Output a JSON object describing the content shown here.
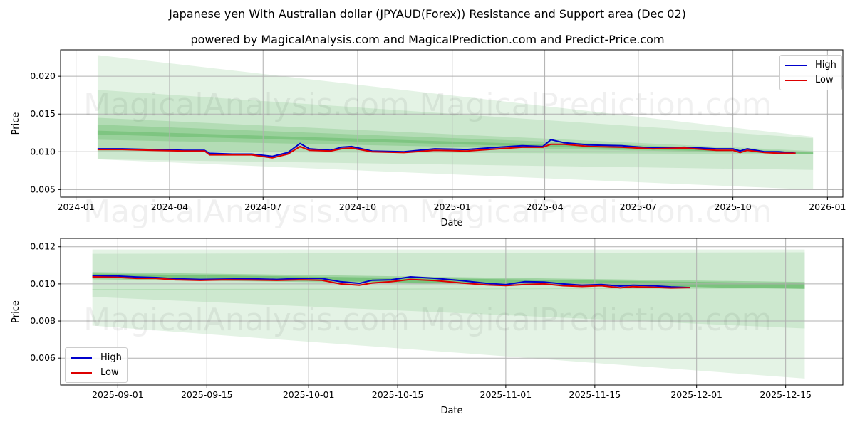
{
  "header": {
    "title": "Japanese yen With Australian dollar (JPYAUD(Forex)) Resistance and Support area (Dec 02)",
    "subtitle": "powered by MagicalAnalysis.com and MagicalPrediction.com and Predict-Price.com"
  },
  "watermarks": [
    "MagicalAnalysis.com",
    "MagicalPrediction.com"
  ],
  "colors": {
    "high": "#0000cc",
    "low": "#dd0000",
    "band": "#4caf50"
  },
  "legend": {
    "high": "High",
    "low": "Low"
  },
  "chart_data": [
    {
      "type": "line",
      "title": "Full history with resistance/support bands",
      "xlabel": "Date",
      "ylabel": "Price",
      "ylim": [
        0.004,
        0.0235
      ],
      "xlim": [
        "2023-12-17",
        "2026-01-16"
      ],
      "xticks": [
        "2024-01",
        "2024-04",
        "2024-07",
        "2024-10",
        "2025-01",
        "2025-04",
        "2025-07",
        "2025-10",
        "2026-01"
      ],
      "yticks": [
        "0.005",
        "0.010",
        "0.015",
        "0.020"
      ],
      "grid": true,
      "legend_position": "upper right",
      "x": [
        "2024-01-22",
        "2024-02-15",
        "2024-03-15",
        "2024-04-15",
        "2024-05-05",
        "2024-05-10",
        "2024-06-01",
        "2024-06-20",
        "2024-07-10",
        "2024-07-25",
        "2024-08-06",
        "2024-08-15",
        "2024-09-05",
        "2024-09-15",
        "2024-09-25",
        "2024-10-15",
        "2024-11-15",
        "2024-12-15",
        "2025-01-15",
        "2025-02-15",
        "2025-03-10",
        "2025-03-30",
        "2025-04-07",
        "2025-04-20",
        "2025-05-15",
        "2025-06-15",
        "2025-07-15",
        "2025-08-15",
        "2025-09-15",
        "2025-10-01",
        "2025-10-08",
        "2025-10-15",
        "2025-11-01",
        "2025-11-15",
        "2025-12-01"
      ],
      "series": [
        {
          "name": "High",
          "values": [
            0.0104,
            0.0104,
            0.0103,
            0.0102,
            0.0102,
            0.0098,
            0.0097,
            0.0097,
            0.0094,
            0.0099,
            0.0111,
            0.0104,
            0.0102,
            0.0106,
            0.0107,
            0.0101,
            0.01,
            0.0104,
            0.0103,
            0.0106,
            0.0108,
            0.0107,
            0.0116,
            0.0112,
            0.0109,
            0.0108,
            0.0105,
            0.0106,
            0.0104,
            0.0104,
            0.0101,
            0.0104,
            0.01,
            0.01,
            0.0098
          ]
        },
        {
          "name": "Low",
          "values": [
            0.0103,
            0.0103,
            0.0102,
            0.0101,
            0.0101,
            0.0096,
            0.0096,
            0.0096,
            0.0092,
            0.0097,
            0.0107,
            0.0102,
            0.0101,
            0.0104,
            0.0105,
            0.01,
            0.0099,
            0.0102,
            0.0101,
            0.0104,
            0.0106,
            0.0106,
            0.011,
            0.011,
            0.0107,
            0.0106,
            0.0104,
            0.0105,
            0.0102,
            0.0102,
            0.0099,
            0.0102,
            0.0099,
            0.0098,
            0.0098
          ]
        }
      ],
      "bands": [
        {
          "x0": "2024-01-22",
          "x1": "2025-12-18",
          "upper": [
            0.0228,
            0.012
          ],
          "lower": [
            0.009,
            0.005
          ],
          "opacity": 0.15
        },
        {
          "x0": "2024-01-22",
          "x1": "2025-12-18",
          "upper": [
            0.0182,
            0.0118
          ],
          "lower": [
            0.009,
            0.0076
          ],
          "opacity": 0.15
        },
        {
          "x0": "2024-01-22",
          "x1": "2025-12-18",
          "upper": [
            0.0145,
            0.0101
          ],
          "lower": [
            0.01,
            0.0097
          ],
          "opacity": 0.2
        },
        {
          "x0": "2024-01-22",
          "x1": "2025-12-18",
          "upper": [
            0.0136,
            0.01
          ],
          "lower": [
            0.0116,
            0.0097
          ],
          "opacity": 0.25
        },
        {
          "x0": "2024-01-22",
          "x1": "2025-12-18",
          "upper": [
            0.0128,
            0.0099
          ],
          "lower": [
            0.0123,
            0.0097
          ],
          "opacity": 0.35
        }
      ]
    },
    {
      "type": "line",
      "title": "Recent detail with resistance/support bands",
      "xlabel": "Date",
      "ylabel": "Price",
      "ylim": [
        0.00455,
        0.01245
      ],
      "xlim": [
        "2025-08-23",
        "2025-12-24"
      ],
      "xticks": [
        "2025-09-01",
        "2025-09-15",
        "2025-10-01",
        "2025-10-15",
        "2025-11-01",
        "2025-11-15",
        "2025-12-01",
        "2025-12-15"
      ],
      "yticks": [
        "0.006",
        "0.008",
        "0.010",
        "0.012"
      ],
      "grid": true,
      "legend_position": "lower left",
      "x": [
        "2025-08-28",
        "2025-09-01",
        "2025-09-04",
        "2025-09-07",
        "2025-09-10",
        "2025-09-14",
        "2025-09-18",
        "2025-09-22",
        "2025-09-26",
        "2025-09-30",
        "2025-10-03",
        "2025-10-06",
        "2025-10-09",
        "2025-10-11",
        "2025-10-14",
        "2025-10-17",
        "2025-10-21",
        "2025-10-25",
        "2025-10-29",
        "2025-11-01",
        "2025-11-04",
        "2025-11-07",
        "2025-11-10",
        "2025-11-13",
        "2025-11-16",
        "2025-11-19",
        "2025-11-21",
        "2025-11-24",
        "2025-11-27",
        "2025-11-30"
      ],
      "series": [
        {
          "name": "High",
          "values": [
            0.01045,
            0.01042,
            0.01037,
            0.01034,
            0.01028,
            0.01024,
            0.01026,
            0.01027,
            0.01024,
            0.0103,
            0.0103,
            0.01012,
            0.01003,
            0.0102,
            0.01022,
            0.01038,
            0.0103,
            0.01018,
            0.01003,
            0.00996,
            0.01012,
            0.0101,
            0.01,
            0.00993,
            0.00997,
            0.00988,
            0.00993,
            0.0099,
            0.00984,
            0.0098
          ]
        },
        {
          "name": "Low",
          "values": [
            0.01038,
            0.01035,
            0.0103,
            0.0103,
            0.01022,
            0.01019,
            0.01022,
            0.01021,
            0.01019,
            0.01022,
            0.0102,
            0.01,
            0.00993,
            0.01005,
            0.01012,
            0.01024,
            0.01018,
            0.01005,
            0.00995,
            0.00991,
            0.00997,
            0.01,
            0.0099,
            0.00986,
            0.0099,
            0.00979,
            0.00985,
            0.00982,
            0.00978,
            0.0098
          ]
        }
      ],
      "bands": [
        {
          "x0": "2025-08-28",
          "x1": "2025-12-18",
          "upper": [
            0.01185,
            0.01185
          ],
          "lower": [
            0.00775,
            0.0049
          ],
          "opacity": 0.15
        },
        {
          "x0": "2025-08-28",
          "x1": "2025-12-18",
          "upper": [
            0.01162,
            0.0117
          ],
          "lower": [
            0.0093,
            0.0076
          ],
          "opacity": 0.15
        },
        {
          "x0": "2025-08-28",
          "x1": "2025-12-18",
          "upper": [
            0.01064,
            0.0101
          ],
          "lower": [
            0.01025,
            0.00975
          ],
          "opacity": 0.35
        },
        {
          "x0": "2025-08-28",
          "x1": "2025-12-18",
          "upper": [
            0.01055,
            0.01003
          ],
          "lower": [
            0.01035,
            0.00973
          ],
          "opacity": 0.45
        },
        {
          "x0": "2025-08-28",
          "x1": "2025-12-18",
          "upper": [
            0.00972,
            0.00978
          ],
          "lower": [
            0.00966,
            0.00975
          ],
          "opacity": 0.2
        }
      ]
    }
  ]
}
